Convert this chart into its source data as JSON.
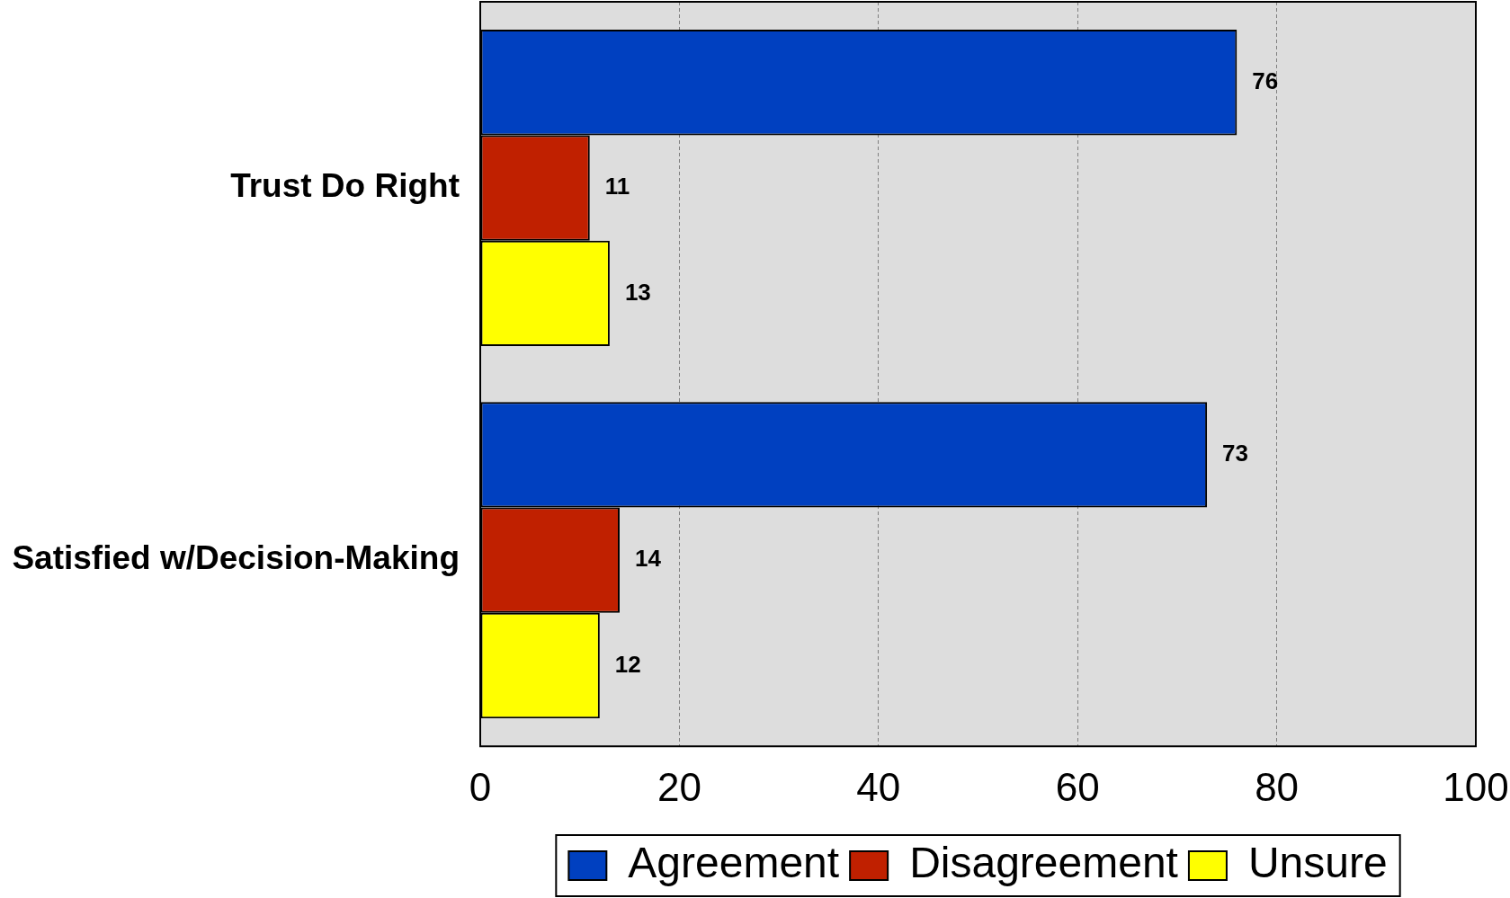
{
  "chart_data": {
    "type": "bar",
    "orientation": "horizontal",
    "categories": [
      "Trust Do Right",
      "Satisfied w/Decision-Making"
    ],
    "series": [
      {
        "name": "Agreement",
        "color": "#0040c0",
        "values": [
          76,
          73
        ]
      },
      {
        "name": "Disagreement",
        "color": "#c02000",
        "values": [
          11,
          14
        ]
      },
      {
        "name": "Unsure",
        "color": "#ffff00",
        "values": [
          13,
          12
        ]
      }
    ],
    "xlim": [
      0,
      100
    ],
    "xticks": [
      0,
      20,
      40,
      60,
      80,
      100
    ],
    "grid": "x",
    "legend": "bottom",
    "data_labels": true
  }
}
